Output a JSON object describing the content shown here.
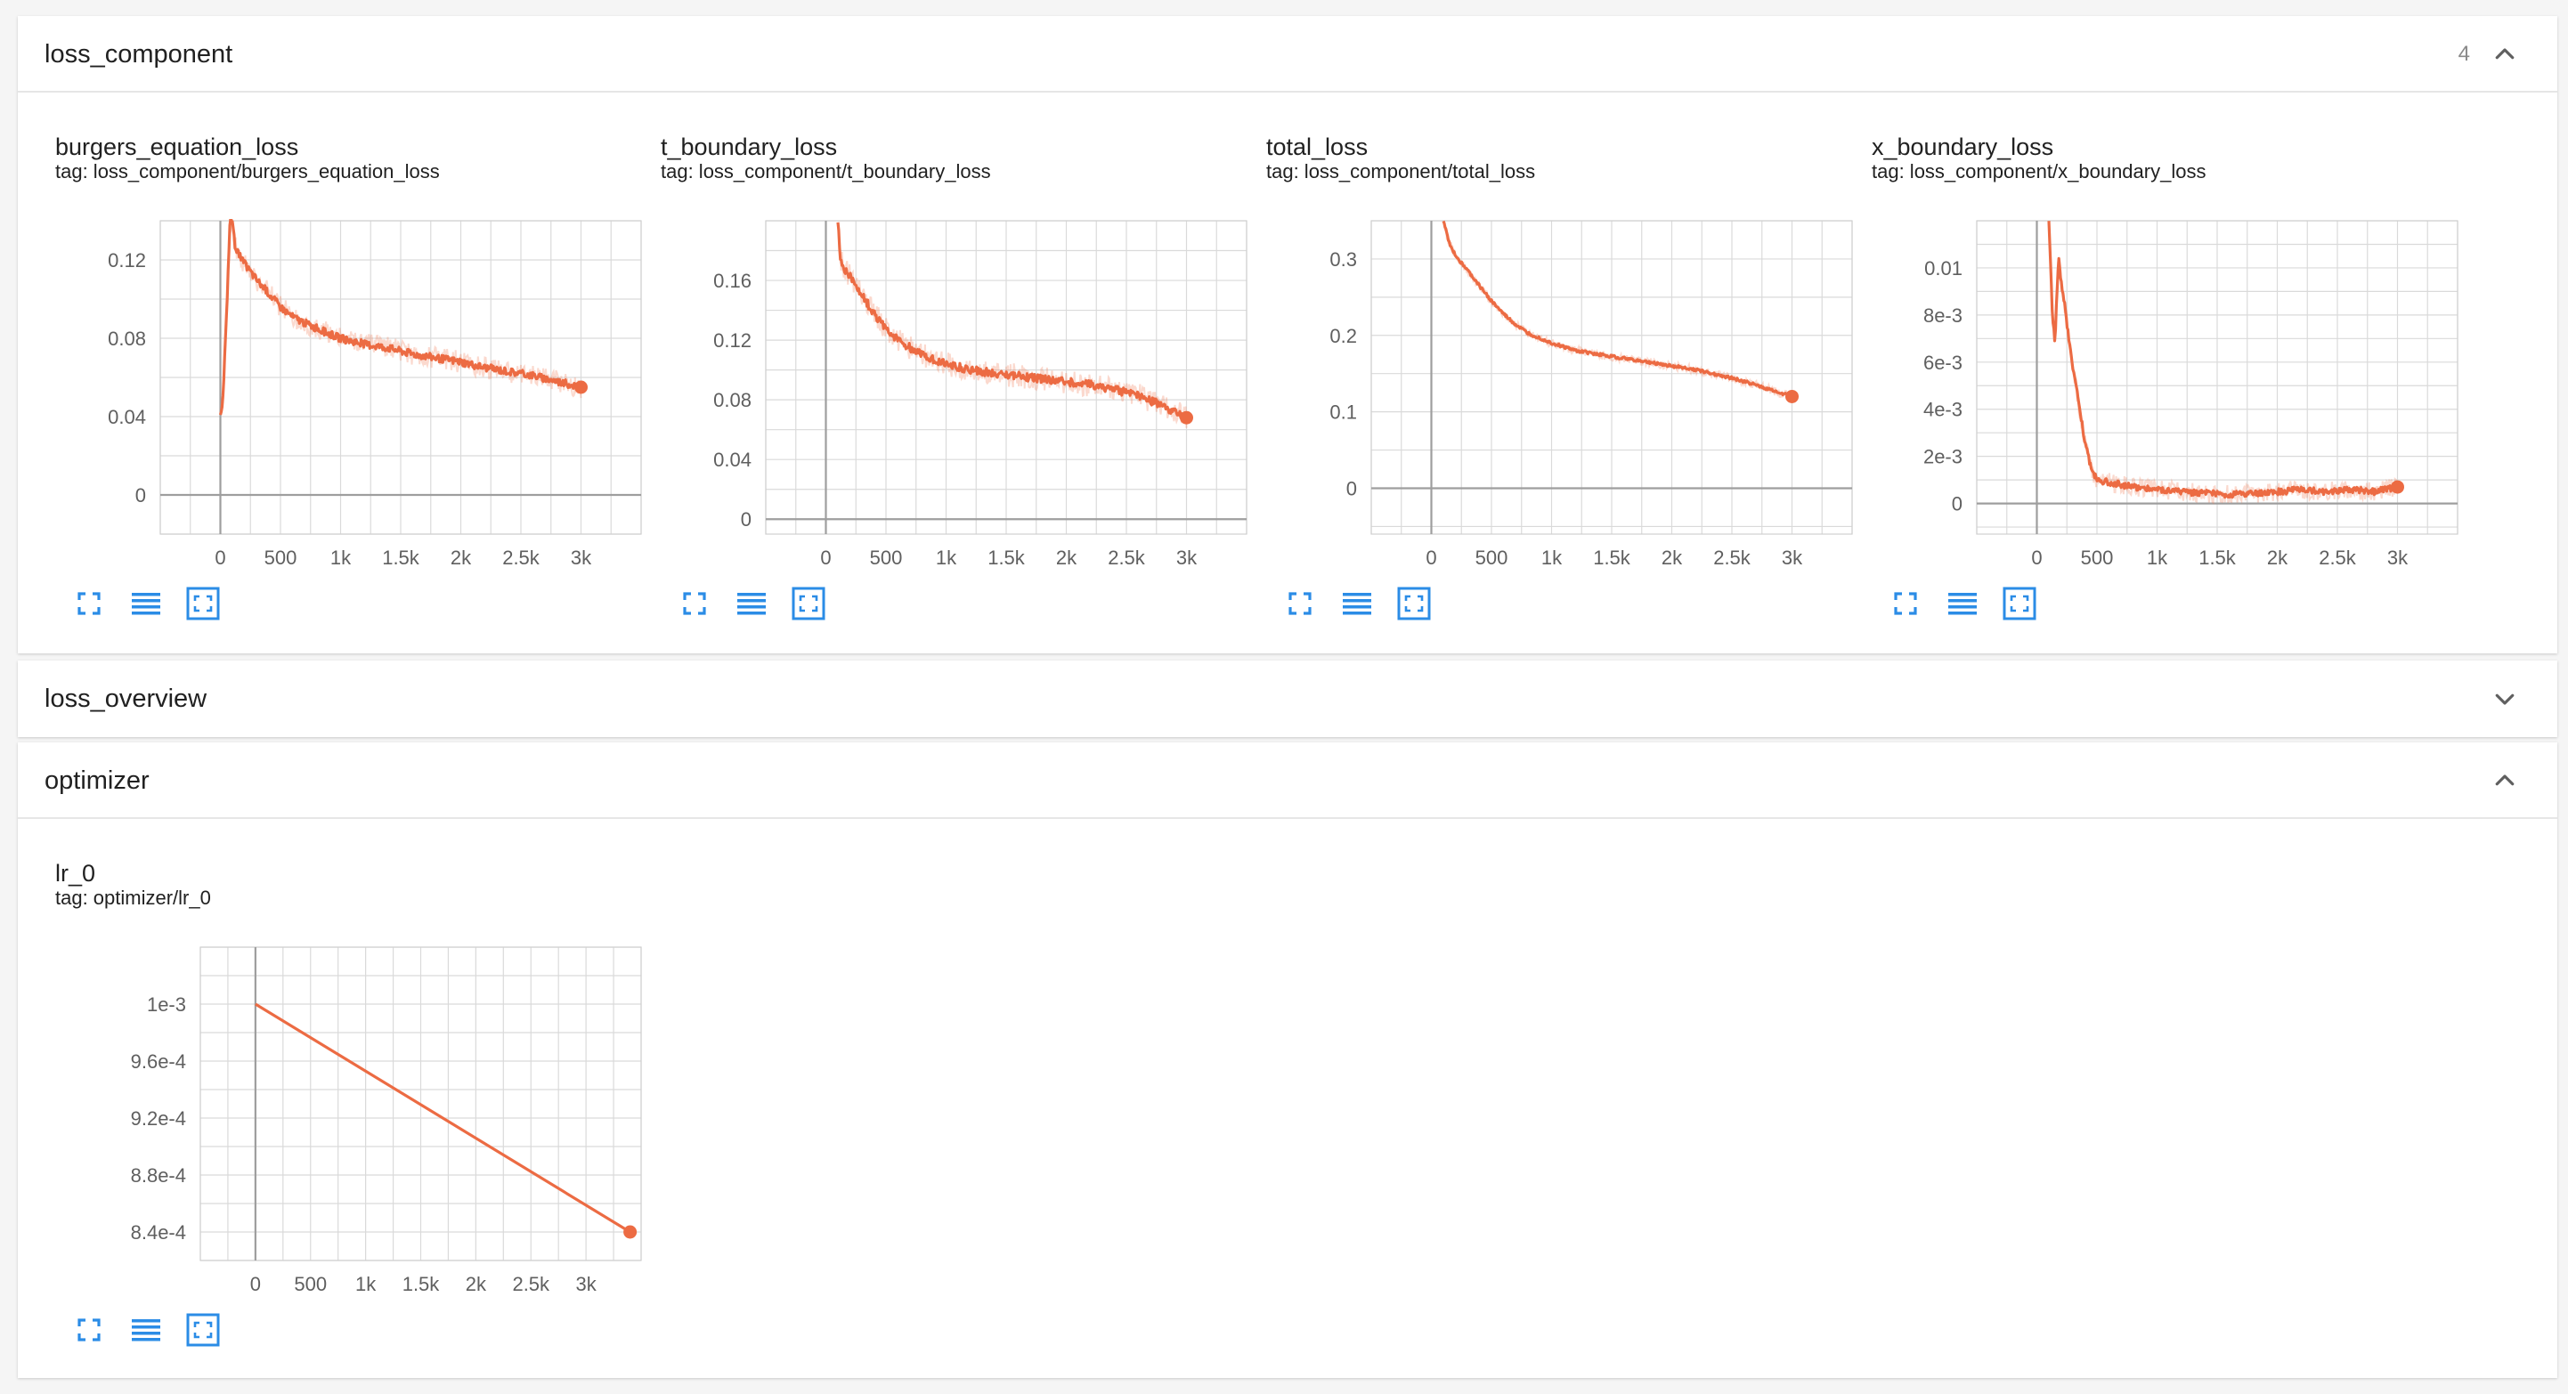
{
  "accent_color": "#f07850",
  "smooth_color": "#ec6b43",
  "icon_color": "#2b8ce6",
  "sections": {
    "loss_component": {
      "title": "loss_component",
      "count": "4",
      "state": "expanded"
    },
    "loss_overview": {
      "title": "loss_overview",
      "state": "collapsed"
    },
    "optimizer": {
      "title": "optimizer",
      "state": "expanded"
    }
  },
  "cards": {
    "burgers": {
      "title": "burgers_equation_loss",
      "tag": "tag: loss_component/burgers_equation_loss",
      "icons": [
        "fullscreen-icon",
        "toggle-log-scale-icon",
        "fit-domain-icon"
      ]
    },
    "tboundary": {
      "title": "t_boundary_loss",
      "tag": "tag: loss_component/t_boundary_loss",
      "icons": [
        "fullscreen-icon",
        "toggle-log-scale-icon",
        "fit-domain-icon"
      ]
    },
    "total": {
      "title": "total_loss",
      "tag": "tag: loss_component/total_loss",
      "icons": [
        "fullscreen-icon",
        "toggle-log-scale-icon",
        "fit-domain-icon"
      ]
    },
    "xboundary": {
      "title": "x_boundary_loss",
      "tag": "tag: loss_component/x_boundary_loss",
      "icons": [
        "fullscreen-icon",
        "toggle-log-scale-icon",
        "fit-domain-icon"
      ]
    },
    "lr": {
      "title": "lr_0",
      "tag": "tag: optimizer/lr_0",
      "icons": [
        "fullscreen-icon",
        "toggle-log-scale-icon",
        "fit-domain-icon"
      ]
    }
  },
  "chart_data": [
    {
      "id": "burgers",
      "type": "line",
      "title": "burgers_equation_loss",
      "xlim": [
        -500,
        3500
      ],
      "ylim": [
        -0.02,
        0.14
      ],
      "x_ticks": [
        0,
        500,
        1000,
        1500,
        2000,
        2500,
        3000
      ],
      "x_tick_labels": [
        "0",
        "500",
        "1k",
        "1.5k",
        "2k",
        "2.5k",
        "3k"
      ],
      "y_ticks": [
        0,
        0.04,
        0.08,
        0.12
      ],
      "y_tick_labels": [
        "0",
        "0.04",
        "0.08",
        "0.12"
      ],
      "grid": true,
      "series": [
        {
          "x": [
            0,
            20,
            50,
            80,
            100,
            120,
            150,
            200,
            300,
            400,
            500,
            600,
            800,
            1000,
            1200,
            1400,
            1600,
            1800,
            2000,
            2200,
            2400,
            2600,
            2800,
            3000
          ],
          "y": [
            0.042,
            0.048,
            0.09,
            0.14,
            0.14,
            0.128,
            0.123,
            0.118,
            0.11,
            0.103,
            0.096,
            0.091,
            0.085,
            0.08,
            0.077,
            0.075,
            0.072,
            0.07,
            0.068,
            0.065,
            0.063,
            0.061,
            0.058,
            0.055
          ],
          "noise": 0.0035
        }
      ]
    },
    {
      "id": "tboundary",
      "type": "line",
      "title": "t_boundary_loss",
      "xlim": [
        -500,
        3500
      ],
      "ylim": [
        -0.01,
        0.2
      ],
      "x_ticks": [
        0,
        500,
        1000,
        1500,
        2000,
        2500,
        3000
      ],
      "x_tick_labels": [
        "0",
        "500",
        "1k",
        "1.5k",
        "2k",
        "2.5k",
        "3k"
      ],
      "y_ticks": [
        0,
        0.04,
        0.08,
        0.12,
        0.16
      ],
      "y_tick_labels": [
        "0",
        "0.04",
        "0.08",
        "0.12",
        "0.16"
      ],
      "grid": true,
      "series": [
        {
          "x": [
            100,
            120,
            150,
            200,
            300,
            400,
            500,
            600,
            800,
            1000,
            1200,
            1400,
            1600,
            1800,
            2000,
            2200,
            2400,
            2600,
            2800,
            3000
          ],
          "y": [
            0.2,
            0.175,
            0.168,
            0.163,
            0.15,
            0.138,
            0.128,
            0.12,
            0.11,
            0.104,
            0.1,
            0.098,
            0.096,
            0.094,
            0.092,
            0.09,
            0.087,
            0.083,
            0.076,
            0.068
          ],
          "noise": 0.005
        }
      ]
    },
    {
      "id": "total",
      "type": "line",
      "title": "total_loss",
      "xlim": [
        -500,
        3500
      ],
      "ylim": [
        -0.06,
        0.35
      ],
      "x_ticks": [
        0,
        500,
        1000,
        1500,
        2000,
        2500,
        3000
      ],
      "x_tick_labels": [
        "0",
        "500",
        "1k",
        "1.5k",
        "2k",
        "2.5k",
        "3k"
      ],
      "y_ticks": [
        0,
        0.1,
        0.2,
        0.3
      ],
      "y_tick_labels": [
        "0",
        "0.1",
        "0.2",
        "0.3"
      ],
      "grid": true,
      "series": [
        {
          "x": [
            100,
            150,
            200,
            300,
            400,
            500,
            600,
            700,
            800,
            1000,
            1200,
            1400,
            1600,
            1800,
            2000,
            2200,
            2400,
            2600,
            2800,
            3000
          ],
          "y": [
            0.35,
            0.32,
            0.305,
            0.285,
            0.265,
            0.245,
            0.228,
            0.214,
            0.203,
            0.19,
            0.18,
            0.175,
            0.17,
            0.165,
            0.16,
            0.155,
            0.148,
            0.14,
            0.13,
            0.12
          ],
          "noise": 0.0035
        }
      ]
    },
    {
      "id": "xboundary",
      "type": "line",
      "title": "x_boundary_loss",
      "xlim": [
        -500,
        3500
      ],
      "ylim": [
        -0.0013,
        0.012
      ],
      "x_ticks": [
        0,
        500,
        1000,
        1500,
        2000,
        2500,
        3000
      ],
      "x_tick_labels": [
        "0",
        "500",
        "1k",
        "1.5k",
        "2k",
        "2.5k",
        "3k"
      ],
      "y_ticks": [
        0,
        0.002,
        0.004,
        0.006,
        0.008,
        0.01
      ],
      "y_tick_labels": [
        "0",
        "2e-3",
        "4e-3",
        "6e-3",
        "8e-3",
        "0.01"
      ],
      "grid": true,
      "series": [
        {
          "x": [
            100,
            130,
            150,
            180,
            200,
            230,
            260,
            300,
            350,
            400,
            450,
            500,
            600,
            800,
            1000,
            1200,
            1500,
            1800,
            2000,
            2200,
            2400,
            2600,
            2800,
            3000
          ],
          "y": [
            0.012,
            0.008,
            0.0068,
            0.0105,
            0.0095,
            0.0085,
            0.0072,
            0.0058,
            0.0042,
            0.0026,
            0.0015,
            0.001,
            0.0009,
            0.0007,
            0.0006,
            0.0005,
            0.0004,
            0.0004,
            0.0005,
            0.0006,
            0.0005,
            0.0006,
            0.0005,
            0.0007
          ],
          "noise": 0.00025
        }
      ]
    },
    {
      "id": "lr",
      "type": "line",
      "title": "lr_0",
      "xlim": [
        -500,
        3500
      ],
      "ylim": [
        0.00082,
        0.00104
      ],
      "x_ticks": [
        0,
        500,
        1000,
        1500,
        2000,
        2500,
        3000
      ],
      "x_tick_labels": [
        "0",
        "500",
        "1k",
        "1.5k",
        "2k",
        "2.5k",
        "3k"
      ],
      "y_ticks": [
        0.00084,
        0.00088,
        0.00092,
        0.00096,
        0.001
      ],
      "y_tick_labels": [
        "8.4e-4",
        "8.8e-4",
        "9.2e-4",
        "9.6e-4",
        "1e-3"
      ],
      "grid": true,
      "series": [
        {
          "x": [
            0,
            3400
          ],
          "y": [
            0.001,
            0.00084
          ],
          "noise": 0
        }
      ]
    }
  ]
}
